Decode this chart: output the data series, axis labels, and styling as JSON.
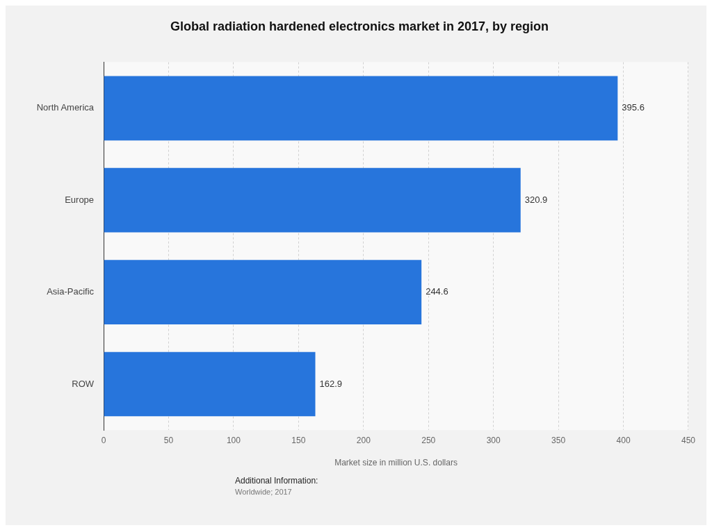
{
  "chart_data": {
    "type": "bar",
    "orientation": "horizontal",
    "title": "Global radiation hardened electronics market in 2017, by region",
    "xlabel": "Market size in million U.S. dollars",
    "categories": [
      "North America",
      "Europe",
      "Asia-Pacific",
      "ROW"
    ],
    "values": [
      395.6,
      320.9,
      244.6,
      162.9
    ],
    "color": "#2775dc",
    "xlim": [
      0,
      450
    ],
    "xticks": [
      0,
      50,
      100,
      150,
      200,
      250,
      300,
      350,
      400,
      450
    ],
    "grid": "x",
    "data_labels": true,
    "legend": false,
    "annotations": [
      "Additional Information:",
      "Worldwide; 2017"
    ]
  }
}
